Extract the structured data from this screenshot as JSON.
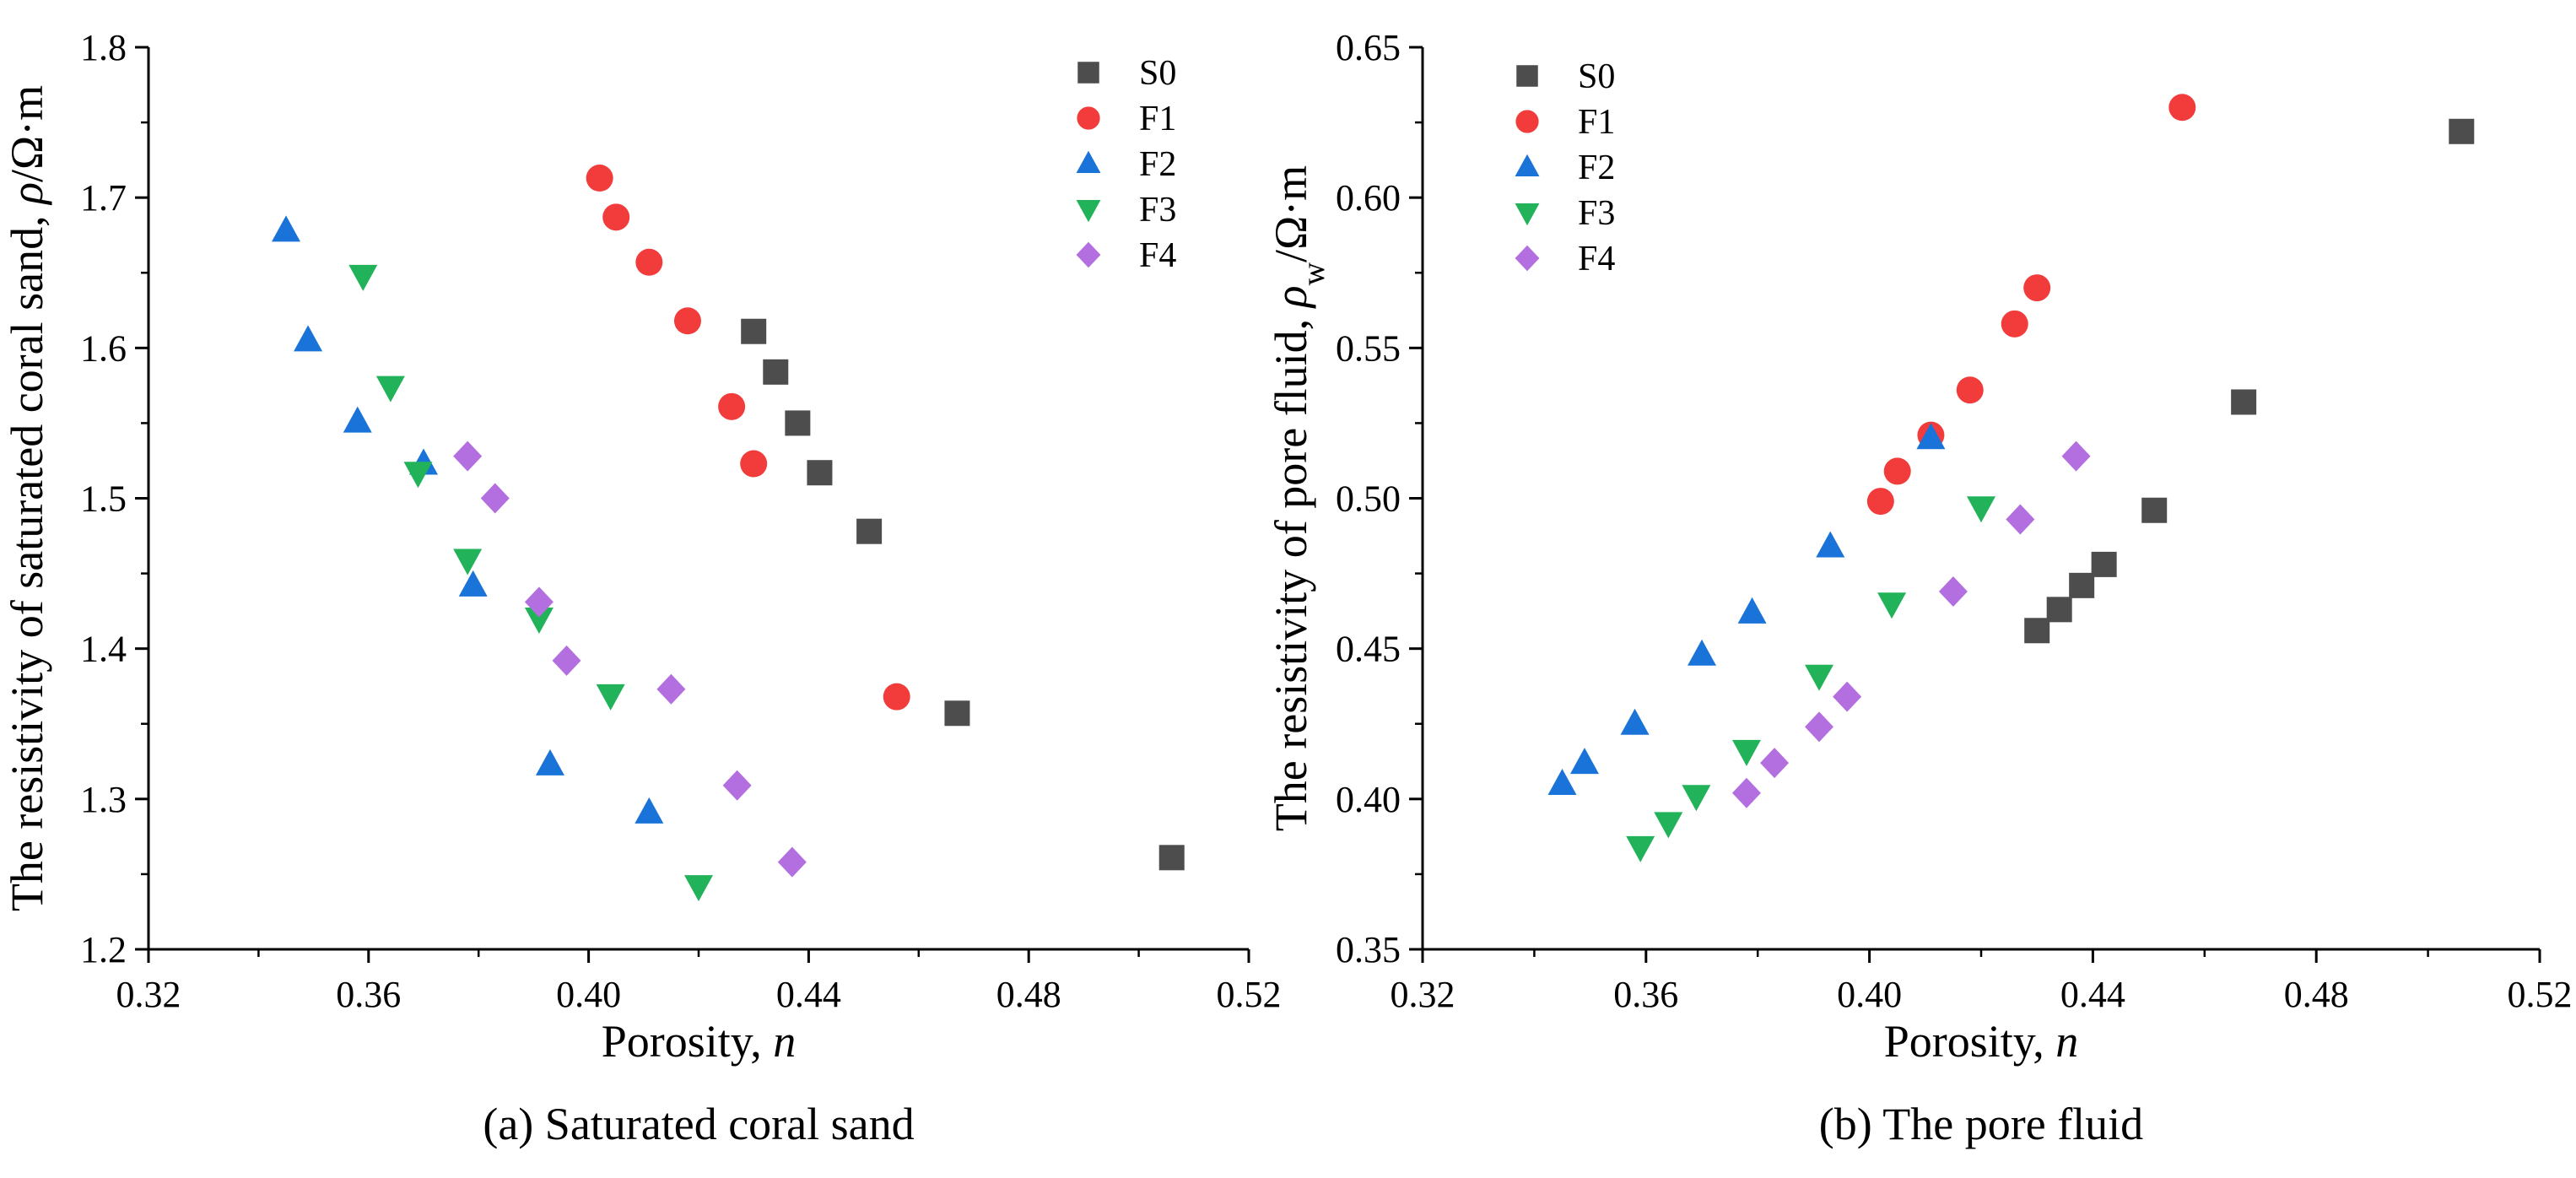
{
  "chart_data": [
    {
      "type": "scatter",
      "caption": "(a) Saturated coral sand",
      "xlabel": {
        "main": "Porosity,",
        "italic": "n"
      },
      "ylabel": {
        "main": "The resistivity of saturated coral sand,",
        "symbol": "ρ",
        "sub": "",
        "unit": "/Ω·m"
      },
      "xlim": [
        0.32,
        0.52
      ],
      "ylim": [
        1.2,
        1.8
      ],
      "xticks": [
        "0.32",
        "0.36",
        "0.40",
        "0.44",
        "0.48",
        "0.52"
      ],
      "yticks": [
        "1.2",
        "1.3",
        "1.4",
        "1.5",
        "1.6",
        "1.7",
        "1.8"
      ],
      "legend_position": "top-right",
      "series": [
        {
          "name": "S0",
          "marker": "square",
          "color": "#4d4d4d",
          "x": [
            0.43,
            0.434,
            0.438,
            0.442,
            0.451,
            0.467,
            0.506
          ],
          "y": [
            1.611,
            1.584,
            1.55,
            1.517,
            1.478,
            1.357,
            1.261
          ]
        },
        {
          "name": "F1",
          "marker": "circle",
          "color": "#f23c3c",
          "x": [
            0.402,
            0.405,
            0.411,
            0.418,
            0.426,
            0.43,
            0.456
          ],
          "y": [
            1.713,
            1.687,
            1.657,
            1.618,
            1.561,
            1.523,
            1.368
          ]
        },
        {
          "name": "F2",
          "marker": "triangle-up",
          "color": "#1a73d9",
          "x": [
            0.345,
            0.349,
            0.358,
            0.37,
            0.379,
            0.393,
            0.411
          ],
          "y": [
            1.678,
            1.605,
            1.551,
            1.523,
            1.442,
            1.323,
            1.291
          ]
        },
        {
          "name": "F3",
          "marker": "triangle-down",
          "color": "#22b35a",
          "x": [
            0.359,
            0.364,
            0.369,
            0.378,
            0.391,
            0.404,
            0.42
          ],
          "y": [
            1.648,
            1.574,
            1.517,
            1.459,
            1.42,
            1.369,
            1.242
          ]
        },
        {
          "name": "F4",
          "marker": "diamond",
          "color": "#b36fe0",
          "x": [
            0.378,
            0.383,
            0.391,
            0.396,
            0.415,
            0.427,
            0.437
          ],
          "y": [
            1.528,
            1.5,
            1.431,
            1.392,
            1.373,
            1.309,
            1.258
          ]
        }
      ]
    },
    {
      "type": "scatter",
      "caption": "(b)  The pore fluid",
      "xlabel": {
        "main": "Porosity,",
        "italic": "n"
      },
      "ylabel": {
        "main": "The resistivity of pore fluid,",
        "symbol": "ρ",
        "sub": "w",
        "unit": "/Ω·m"
      },
      "xlim": [
        0.32,
        0.52
      ],
      "ylim": [
        0.35,
        0.65
      ],
      "xticks": [
        "0.32",
        "0.36",
        "0.40",
        "0.44",
        "0.48",
        "0.52"
      ],
      "yticks": [
        "0.35",
        "0.40",
        "0.45",
        "0.50",
        "0.55",
        "0.60",
        "0.65"
      ],
      "legend_position": "top-left",
      "series": [
        {
          "name": "S0",
          "marker": "square",
          "color": "#4d4d4d",
          "x": [
            0.43,
            0.434,
            0.438,
            0.442,
            0.451,
            0.467,
            0.506
          ],
          "y": [
            0.456,
            0.463,
            0.471,
            0.478,
            0.496,
            0.532,
            0.622
          ]
        },
        {
          "name": "F1",
          "marker": "circle",
          "color": "#f23c3c",
          "x": [
            0.402,
            0.405,
            0.411,
            0.418,
            0.426,
            0.43,
            0.456
          ],
          "y": [
            0.499,
            0.509,
            0.521,
            0.536,
            0.558,
            0.57,
            0.63
          ]
        },
        {
          "name": "F2",
          "marker": "triangle-up",
          "color": "#1a73d9",
          "x": [
            0.345,
            0.349,
            0.358,
            0.37,
            0.379,
            0.393,
            0.411
          ],
          "y": [
            0.405,
            0.412,
            0.425,
            0.448,
            0.462,
            0.484,
            0.52
          ]
        },
        {
          "name": "F3",
          "marker": "triangle-down",
          "color": "#22b35a",
          "x": [
            0.359,
            0.364,
            0.369,
            0.378,
            0.391,
            0.404,
            0.42
          ],
          "y": [
            0.384,
            0.392,
            0.401,
            0.416,
            0.441,
            0.465,
            0.497
          ]
        },
        {
          "name": "F4",
          "marker": "diamond",
          "color": "#b36fe0",
          "x": [
            0.378,
            0.383,
            0.391,
            0.396,
            0.415,
            0.427,
            0.437
          ],
          "y": [
            0.402,
            0.412,
            0.424,
            0.434,
            0.469,
            0.493,
            0.514
          ]
        }
      ]
    }
  ]
}
